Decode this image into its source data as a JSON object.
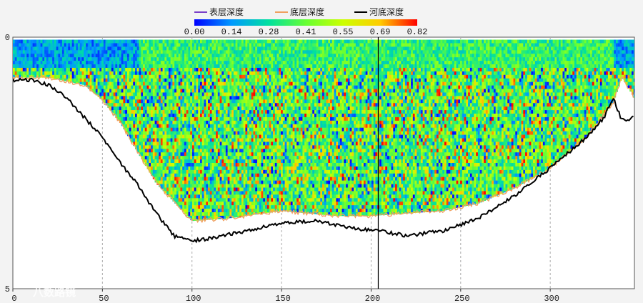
{
  "chart_data": {
    "type": "heatmap",
    "title": "",
    "xlabel": "",
    "ylabel": "",
    "xlim": [
      0,
      347
    ],
    "ylim": [
      5,
      0
    ],
    "x_ticks": [
      0,
      50,
      100,
      150,
      200,
      250,
      300
    ],
    "y_ticks": [
      0,
      5
    ],
    "grid": true,
    "legend_placement": "top-center",
    "legend": [
      {
        "name": "表层深度",
        "color": "#7a3fc8"
      },
      {
        "name": "底层深度",
        "color": "#f0a060"
      },
      {
        "name": "河底深度",
        "color": "#000000"
      }
    ],
    "colorbar": {
      "labels": [
        "0.00",
        "0.14",
        "0.28",
        "0.41",
        "0.55",
        "0.69",
        "0.82"
      ],
      "min": 0.0,
      "max": 0.82,
      "colors": [
        "#0000ff",
        "#0099ff",
        "#00e0a0",
        "#66ff33",
        "#ccff00",
        "#ffcc00",
        "#ff0000"
      ]
    },
    "vertical_marker_x": 204,
    "series": [
      {
        "name": "表层深度",
        "x": [
          0,
          347
        ],
        "y": [
          0.05,
          0.05
        ]
      },
      {
        "name": "底层深度",
        "x": [
          0,
          20,
          40,
          50,
          60,
          70,
          80,
          100,
          120,
          150,
          180,
          200,
          220,
          240,
          260,
          280,
          300,
          320,
          335,
          340,
          347
        ],
        "y": [
          0.8,
          0.8,
          0.95,
          1.25,
          1.7,
          2.3,
          2.9,
          3.65,
          3.6,
          3.45,
          3.55,
          3.55,
          3.5,
          3.45,
          3.3,
          3.0,
          2.6,
          2.0,
          1.3,
          0.8,
          1.2
        ]
      },
      {
        "name": "河底深度",
        "x": [
          0,
          10,
          20,
          30,
          40,
          50,
          60,
          70,
          80,
          90,
          100,
          110,
          130,
          150,
          170,
          190,
          205,
          220,
          240,
          260,
          280,
          300,
          320,
          330,
          335,
          340,
          347
        ],
        "y": [
          0.85,
          0.85,
          0.95,
          1.2,
          1.6,
          2.0,
          2.5,
          2.95,
          3.5,
          3.95,
          4.05,
          4.0,
          3.85,
          3.7,
          3.65,
          3.8,
          3.85,
          3.95,
          3.85,
          3.6,
          3.15,
          2.6,
          2.0,
          1.6,
          1.2,
          1.65,
          1.6
        ]
      }
    ]
  },
  "watermark": "八数路镜"
}
